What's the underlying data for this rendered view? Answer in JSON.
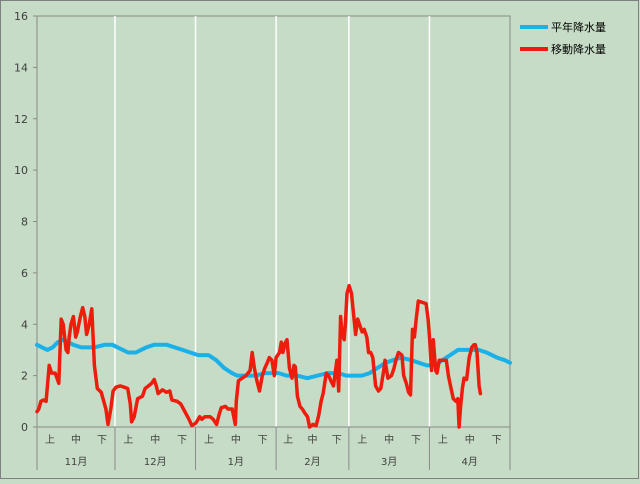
{
  "chart_data": {
    "type": "line",
    "title": "",
    "xlabel": "",
    "ylabel": "",
    "ylim": [
      0,
      16
    ],
    "yticks": [
      0,
      2,
      4,
      6,
      8,
      10,
      12,
      14,
      16
    ],
    "grid": "vertical lines at month boundaries",
    "legend_position": "top-right",
    "x_domain": [
      0,
      182
    ],
    "months": [
      {
        "label": "11月",
        "start": 0,
        "end": 30
      },
      {
        "label": "12月",
        "start": 30,
        "end": 61
      },
      {
        "label": "1月",
        "start": 61,
        "end": 92
      },
      {
        "label": "2月",
        "start": 92,
        "end": 120
      },
      {
        "label": "3月",
        "start": 120,
        "end": 151
      },
      {
        "label": "4月",
        "start": 151,
        "end": 182
      }
    ],
    "dekad_labels": [
      "上",
      "中",
      "下"
    ],
    "series": [
      {
        "name": "平年降水量",
        "color": "#1ab0e8",
        "points": [
          [
            0,
            3.2
          ],
          [
            2,
            3.1
          ],
          [
            4,
            3.0
          ],
          [
            6,
            3.1
          ],
          [
            8,
            3.3
          ],
          [
            10,
            3.4
          ],
          [
            12,
            3.3
          ],
          [
            14,
            3.2
          ],
          [
            17,
            3.1
          ],
          [
            22,
            3.1
          ],
          [
            26,
            3.2
          ],
          [
            29,
            3.2
          ],
          [
            31,
            3.1
          ],
          [
            33,
            3.0
          ],
          [
            35,
            2.9
          ],
          [
            38,
            2.9
          ],
          [
            40,
            3.0
          ],
          [
            42,
            3.1
          ],
          [
            45,
            3.2
          ],
          [
            50,
            3.2
          ],
          [
            53,
            3.1
          ],
          [
            56,
            3.0
          ],
          [
            59,
            2.9
          ],
          [
            62,
            2.8
          ],
          [
            66,
            2.8
          ],
          [
            69,
            2.6
          ],
          [
            72,
            2.3
          ],
          [
            75,
            2.1
          ],
          [
            77,
            2.0
          ],
          [
            84,
            2.0
          ],
          [
            88,
            2.1
          ],
          [
            93,
            2.1
          ],
          [
            96,
            2.0
          ],
          [
            100,
            2.0
          ],
          [
            104,
            1.9
          ],
          [
            108,
            2.0
          ],
          [
            112,
            2.1
          ],
          [
            116,
            2.1
          ],
          [
            119,
            2.0
          ],
          [
            125,
            2.0
          ],
          [
            128,
            2.1
          ],
          [
            131,
            2.3
          ],
          [
            134,
            2.5
          ],
          [
            137,
            2.6
          ],
          [
            140,
            2.7
          ],
          [
            144,
            2.6
          ],
          [
            147,
            2.5
          ],
          [
            150,
            2.4
          ],
          [
            153,
            2.4
          ],
          [
            156,
            2.6
          ],
          [
            159,
            2.8
          ],
          [
            162,
            3.0
          ],
          [
            165,
            3.0
          ],
          [
            170,
            3.0
          ],
          [
            173,
            2.9
          ],
          [
            175,
            2.8
          ],
          [
            177,
            2.7
          ],
          [
            180,
            2.6
          ],
          [
            182,
            2.5
          ]
        ]
      },
      {
        "name": "移動降水量",
        "color": "#ee1c0c",
        "points": [
          [
            0,
            0.6
          ],
          [
            0.7,
            0.7
          ],
          [
            1.5,
            1.0
          ],
          [
            2.5,
            1.05
          ],
          [
            3.5,
            1.0
          ],
          [
            4.7,
            2.4
          ],
          [
            5.6,
            2.1
          ],
          [
            7,
            2.1
          ],
          [
            8.4,
            1.7
          ],
          [
            9.3,
            4.2
          ],
          [
            10.1,
            4.0
          ],
          [
            11.2,
            3.0
          ],
          [
            11.9,
            2.9
          ],
          [
            12.4,
            3.5
          ],
          [
            13.1,
            4.0
          ],
          [
            14,
            4.3
          ],
          [
            14.9,
            3.5
          ],
          [
            15.5,
            3.7
          ],
          [
            16.7,
            4.3
          ],
          [
            17.6,
            4.65
          ],
          [
            18.4,
            4.3
          ],
          [
            19.1,
            3.6
          ],
          [
            20.1,
            4.0
          ],
          [
            21.1,
            4.6
          ],
          [
            22.1,
            2.4
          ],
          [
            23.2,
            1.5
          ],
          [
            24.7,
            1.35
          ],
          [
            26.5,
            0.7
          ],
          [
            27.3,
            0.1
          ],
          [
            28.4,
            0.7
          ],
          [
            29.3,
            1.4
          ],
          [
            30.4,
            1.55
          ],
          [
            32,
            1.6
          ],
          [
            33.5,
            1.55
          ],
          [
            34.9,
            1.5
          ],
          [
            35.9,
            0.9
          ],
          [
            36.4,
            0.2
          ],
          [
            37.4,
            0.4
          ],
          [
            38.7,
            1.1
          ],
          [
            40.6,
            1.2
          ],
          [
            41.6,
            1.5
          ],
          [
            42.9,
            1.6
          ],
          [
            44.1,
            1.7
          ],
          [
            45.1,
            1.85
          ],
          [
            45.9,
            1.6
          ],
          [
            46.6,
            1.3
          ],
          [
            48.3,
            1.45
          ],
          [
            49.8,
            1.35
          ],
          [
            51.1,
            1.4
          ],
          [
            51.9,
            1.05
          ],
          [
            53.9,
            1.0
          ],
          [
            55.3,
            0.9
          ],
          [
            56.9,
            0.6
          ],
          [
            58.5,
            0.3
          ],
          [
            59.6,
            0.05
          ],
          [
            61.1,
            0.15
          ],
          [
            62.6,
            0.4
          ],
          [
            63.4,
            0.3
          ],
          [
            64.6,
            0.4
          ],
          [
            66.6,
            0.4
          ],
          [
            67.8,
            0.3
          ],
          [
            69.1,
            0.1
          ],
          [
            70.1,
            0.5
          ],
          [
            70.9,
            0.75
          ],
          [
            72.5,
            0.8
          ],
          [
            73.5,
            0.7
          ],
          [
            75.1,
            0.7
          ],
          [
            76.3,
            0.1
          ],
          [
            76.7,
            1.0
          ],
          [
            77.5,
            1.8
          ],
          [
            78.9,
            1.9
          ],
          [
            80.4,
            2.0
          ],
          [
            82,
            2.2
          ],
          [
            82.8,
            2.9
          ],
          [
            83.6,
            2.3
          ],
          [
            84.6,
            1.8
          ],
          [
            85.6,
            1.4
          ],
          [
            86.7,
            2.0
          ],
          [
            87.7,
            2.3
          ],
          [
            88.6,
            2.5
          ],
          [
            89.4,
            2.7
          ],
          [
            90.4,
            2.6
          ],
          [
            91.3,
            2.0
          ],
          [
            92,
            2.7
          ],
          [
            93.3,
            2.9
          ],
          [
            94,
            3.3
          ],
          [
            94.6,
            2.9
          ],
          [
            95.4,
            3.25
          ],
          [
            96.2,
            3.4
          ],
          [
            97.1,
            2.3
          ],
          [
            98.1,
            1.9
          ],
          [
            98.9,
            2.4
          ],
          [
            99.4,
            2.35
          ],
          [
            100.2,
            1.2
          ],
          [
            101.2,
            0.8
          ],
          [
            102.1,
            0.7
          ],
          [
            103,
            0.55
          ],
          [
            104.1,
            0.4
          ],
          [
            104.9,
            0.0
          ],
          [
            106.2,
            0.1
          ],
          [
            107.4,
            0.05
          ],
          [
            108.4,
            0.45
          ],
          [
            109.3,
            1.0
          ],
          [
            110.1,
            1.3
          ],
          [
            111.3,
            2.1
          ],
          [
            112.2,
            2.0
          ],
          [
            113.1,
            1.8
          ],
          [
            114.1,
            1.6
          ],
          [
            115.4,
            2.6
          ],
          [
            116.1,
            1.4
          ],
          [
            116.8,
            4.3
          ],
          [
            117.4,
            3.6
          ],
          [
            118.2,
            3.4
          ],
          [
            118.7,
            4.1
          ],
          [
            119.3,
            5.2
          ],
          [
            120.1,
            5.5
          ],
          [
            121,
            5.2
          ],
          [
            121.9,
            4.3
          ],
          [
            122.6,
            3.6
          ],
          [
            123.4,
            4.2
          ],
          [
            124.1,
            4.0
          ],
          [
            125.1,
            3.7
          ],
          [
            125.9,
            3.8
          ],
          [
            126.9,
            3.5
          ],
          [
            127.6,
            2.9
          ],
          [
            128.4,
            2.9
          ],
          [
            129.2,
            2.7
          ],
          [
            130.3,
            1.6
          ],
          [
            131.4,
            1.4
          ],
          [
            132.3,
            1.5
          ],
          [
            133.4,
            2.2
          ],
          [
            133.9,
            2.6
          ],
          [
            135,
            1.9
          ],
          [
            136.4,
            2.0
          ],
          [
            137.4,
            2.3
          ],
          [
            138.1,
            2.6
          ],
          [
            139.1,
            2.9
          ],
          [
            140.4,
            2.8
          ],
          [
            141.1,
            2.0
          ],
          [
            142.1,
            1.7
          ],
          [
            143,
            1.35
          ],
          [
            143.7,
            1.25
          ],
          [
            144.5,
            3.8
          ],
          [
            145.2,
            3.5
          ],
          [
            145.9,
            4.2
          ],
          [
            146.7,
            4.9
          ],
          [
            148.3,
            4.85
          ],
          [
            149.7,
            4.8
          ],
          [
            150.5,
            4.2
          ],
          [
            151.1,
            3.4
          ],
          [
            151.8,
            2.2
          ],
          [
            152.5,
            3.4
          ],
          [
            153.4,
            2.2
          ],
          [
            153.9,
            2.1
          ],
          [
            154.8,
            2.6
          ],
          [
            156.4,
            2.6
          ],
          [
            157.5,
            2.6
          ],
          [
            158.3,
            2.0
          ],
          [
            159.1,
            1.6
          ],
          [
            160.2,
            1.1
          ],
          [
            161.2,
            1.0
          ],
          [
            161.9,
            1.1
          ],
          [
            162.4,
            0.0
          ],
          [
            163,
            0.8
          ],
          [
            163.7,
            1.5
          ],
          [
            164.3,
            1.9
          ],
          [
            165.3,
            1.85
          ],
          [
            166.3,
            2.7
          ],
          [
            167.3,
            3.1
          ],
          [
            168.1,
            3.2
          ],
          [
            168.7,
            3.2
          ],
          [
            169.3,
            2.9
          ],
          [
            170.1,
            1.6
          ],
          [
            170.6,
            1.3
          ]
        ]
      }
    ]
  }
}
